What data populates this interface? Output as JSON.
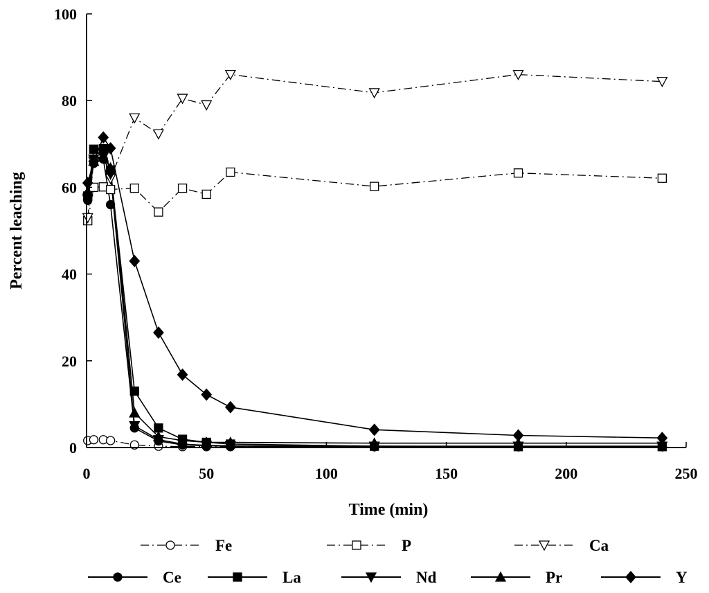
{
  "chart_data": {
    "type": "line",
    "title": "",
    "xlabel": "Time (min)",
    "ylabel": "Percent leaching",
    "xlim": [
      0,
      250
    ],
    "ylim": [
      0,
      100
    ],
    "xticks": [
      0,
      50,
      100,
      150,
      200,
      250
    ],
    "yticks": [
      0,
      20,
      40,
      60,
      80,
      100
    ],
    "grid": false,
    "legend_position": "bottom",
    "series": [
      {
        "name": "Fe",
        "marker": "circle-open",
        "line": "dashdot",
        "points": [
          [
            0.5,
            1.6
          ],
          [
            3,
            1.8
          ],
          [
            7,
            1.8
          ],
          [
            10,
            1.6
          ],
          [
            20,
            0.6
          ],
          [
            30,
            0.3
          ],
          [
            40,
            0.2
          ],
          [
            50,
            0.2
          ],
          [
            60,
            0.2
          ],
          [
            120,
            0.2
          ],
          [
            180,
            0.2
          ],
          [
            240,
            0.2
          ]
        ]
      },
      {
        "name": "P",
        "marker": "square-open",
        "line": "dashdot",
        "points": [
          [
            0.5,
            52.3
          ],
          [
            3,
            60.0
          ],
          [
            7,
            60.1
          ],
          [
            10,
            59.5
          ],
          [
            20,
            59.8
          ],
          [
            30,
            54.3
          ],
          [
            40,
            59.8
          ],
          [
            50,
            58.4
          ],
          [
            60,
            63.5
          ],
          [
            120,
            60.2
          ],
          [
            180,
            63.3
          ],
          [
            240,
            62.1
          ]
        ]
      },
      {
        "name": "Ca",
        "marker": "triangle-down-open",
        "line": "dashdot",
        "points": [
          [
            0.5,
            53.0
          ],
          [
            3,
            66.0
          ],
          [
            7,
            67.0
          ],
          [
            10,
            62.0
          ],
          [
            20,
            76.0
          ],
          [
            30,
            72.3
          ],
          [
            40,
            80.5
          ],
          [
            50,
            79.0
          ],
          [
            60,
            86.0
          ],
          [
            120,
            81.8
          ],
          [
            180,
            86.0
          ],
          [
            240,
            84.4
          ]
        ]
      },
      {
        "name": "Ce",
        "marker": "circle",
        "line": "solid",
        "points": [
          [
            0.5,
            57.0
          ],
          [
            3,
            65.5
          ],
          [
            7,
            66.5
          ],
          [
            10,
            56.0
          ],
          [
            20,
            4.5
          ],
          [
            30,
            1.5
          ],
          [
            40,
            0.6
          ],
          [
            50,
            0.4
          ],
          [
            60,
            0.3
          ],
          [
            120,
            0.2
          ],
          [
            180,
            0.2
          ],
          [
            240,
            0.2
          ]
        ]
      },
      {
        "name": "La",
        "marker": "square",
        "line": "solid",
        "points": [
          [
            0.5,
            58.0
          ],
          [
            3,
            68.8
          ],
          [
            7,
            68.9
          ],
          [
            10,
            64.0
          ],
          [
            20,
            13.0
          ],
          [
            30,
            4.5
          ],
          [
            40,
            1.9
          ],
          [
            50,
            1.2
          ],
          [
            60,
            0.8
          ],
          [
            120,
            0.3
          ],
          [
            180,
            0.2
          ],
          [
            240,
            0.2
          ]
        ]
      },
      {
        "name": "Nd",
        "marker": "triangle-down",
        "line": "solid",
        "points": [
          [
            0.5,
            57.5
          ],
          [
            3,
            66.5
          ],
          [
            7,
            67.0
          ],
          [
            10,
            63.0
          ],
          [
            20,
            5.0
          ],
          [
            30,
            1.8
          ],
          [
            40,
            0.8
          ],
          [
            50,
            0.5
          ],
          [
            60,
            0.4
          ],
          [
            120,
            0.3
          ],
          [
            180,
            0.3
          ],
          [
            240,
            0.3
          ]
        ]
      },
      {
        "name": "Pr",
        "marker": "triangle-up",
        "line": "solid",
        "points": [
          [
            0.5,
            59.0
          ],
          [
            3,
            66.0
          ],
          [
            7,
            67.0
          ],
          [
            10,
            64.5
          ],
          [
            20,
            8.0
          ],
          [
            30,
            2.5
          ],
          [
            40,
            1.6
          ],
          [
            50,
            1.2
          ],
          [
            60,
            1.2
          ],
          [
            120,
            1.0
          ],
          [
            180,
            1.0
          ],
          [
            240,
            1.0
          ]
        ]
      },
      {
        "name": "Y",
        "marker": "diamond",
        "line": "solid",
        "points": [
          [
            0.5,
            61.0
          ],
          [
            3,
            66.0
          ],
          [
            7,
            71.5
          ],
          [
            10,
            69.0
          ],
          [
            20,
            43.0
          ],
          [
            30,
            26.5
          ],
          [
            40,
            16.8
          ],
          [
            50,
            12.2
          ],
          [
            60,
            9.3
          ],
          [
            120,
            4.1
          ],
          [
            180,
            2.8
          ],
          [
            240,
            2.2
          ]
        ]
      }
    ]
  }
}
